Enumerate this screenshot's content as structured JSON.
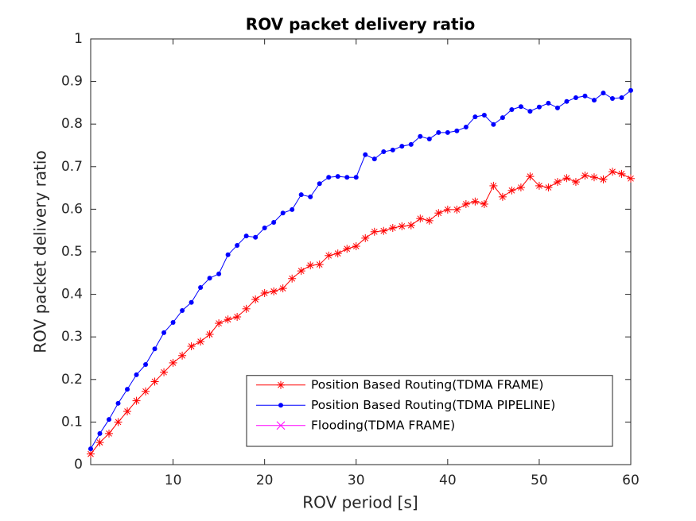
{
  "chart_data": {
    "type": "line",
    "title": "ROV packet delivery ratio",
    "xlabel": "ROV period [s]",
    "ylabel": "ROV packet delivery ratio",
    "x": [
      1,
      2,
      3,
      4,
      5,
      6,
      7,
      8,
      9,
      10,
      11,
      12,
      13,
      14,
      15,
      16,
      17,
      18,
      19,
      20,
      21,
      22,
      23,
      24,
      25,
      26,
      27,
      28,
      29,
      30,
      31,
      32,
      33,
      34,
      35,
      36,
      37,
      38,
      39,
      40,
      41,
      42,
      43,
      44,
      45,
      46,
      47,
      48,
      49,
      50,
      51,
      52,
      53,
      54,
      55,
      56,
      57,
      58,
      59,
      60
    ],
    "series": [
      {
        "name": "Position Based Routing(TDMA FRAME)",
        "color": "#ff0000",
        "marker": "asterisk",
        "values": [
          0.025,
          0.052,
          0.073,
          0.1,
          0.125,
          0.15,
          0.172,
          0.195,
          0.217,
          0.239,
          0.256,
          0.278,
          0.289,
          0.306,
          0.332,
          0.341,
          0.347,
          0.366,
          0.388,
          0.403,
          0.407,
          0.414,
          0.437,
          0.455,
          0.468,
          0.47,
          0.491,
          0.496,
          0.507,
          0.513,
          0.532,
          0.547,
          0.549,
          0.556,
          0.56,
          0.562,
          0.578,
          0.573,
          0.591,
          0.599,
          0.599,
          0.612,
          0.618,
          0.612,
          0.655,
          0.629,
          0.644,
          0.651,
          0.677,
          0.655,
          0.651,
          0.664,
          0.673,
          0.664,
          0.679,
          0.675,
          0.67,
          0.688,
          0.683,
          0.672
        ]
      },
      {
        "name": "Position Based Routing(TDMA PIPELINE)",
        "color": "#0000ff",
        "marker": "dot",
        "values": [
          0.037,
          0.073,
          0.106,
          0.144,
          0.177,
          0.211,
          0.235,
          0.272,
          0.31,
          0.334,
          0.362,
          0.381,
          0.416,
          0.438,
          0.448,
          0.493,
          0.515,
          0.537,
          0.534,
          0.556,
          0.569,
          0.591,
          0.599,
          0.634,
          0.629,
          0.66,
          0.675,
          0.677,
          0.675,
          0.675,
          0.728,
          0.718,
          0.735,
          0.739,
          0.748,
          0.752,
          0.771,
          0.765,
          0.78,
          0.78,
          0.784,
          0.793,
          0.817,
          0.821,
          0.799,
          0.815,
          0.834,
          0.841,
          0.83,
          0.84,
          0.849,
          0.838,
          0.853,
          0.862,
          0.866,
          0.856,
          0.873,
          0.86,
          0.862,
          0.879
        ]
      },
      {
        "name": "Flooding(TDMA FRAME)",
        "color": "#ff00ff",
        "marker": "x",
        "values": [
          null,
          null,
          null,
          null,
          null,
          null,
          null,
          null,
          null,
          null,
          null,
          null,
          null,
          null,
          null,
          null,
          null,
          null,
          null,
          null,
          null,
          null,
          null,
          null,
          null,
          null,
          null,
          null,
          null,
          null,
          null,
          null,
          null,
          null,
          null,
          null,
          null,
          null,
          null,
          null,
          null,
          null,
          null,
          null,
          null,
          null,
          null,
          null,
          null,
          null,
          null,
          null,
          null,
          null,
          null,
          null,
          null,
          null,
          null,
          null
        ]
      }
    ],
    "xlim": [
      1,
      60
    ],
    "xticks": [
      10,
      20,
      30,
      40,
      50,
      60
    ],
    "ylim": [
      0,
      1
    ],
    "yticks": [
      0,
      0.1,
      0.2,
      0.3,
      0.4,
      0.5,
      0.6,
      0.7,
      0.8,
      0.9,
      1
    ],
    "grid": false,
    "legend_location": "southeast"
  }
}
